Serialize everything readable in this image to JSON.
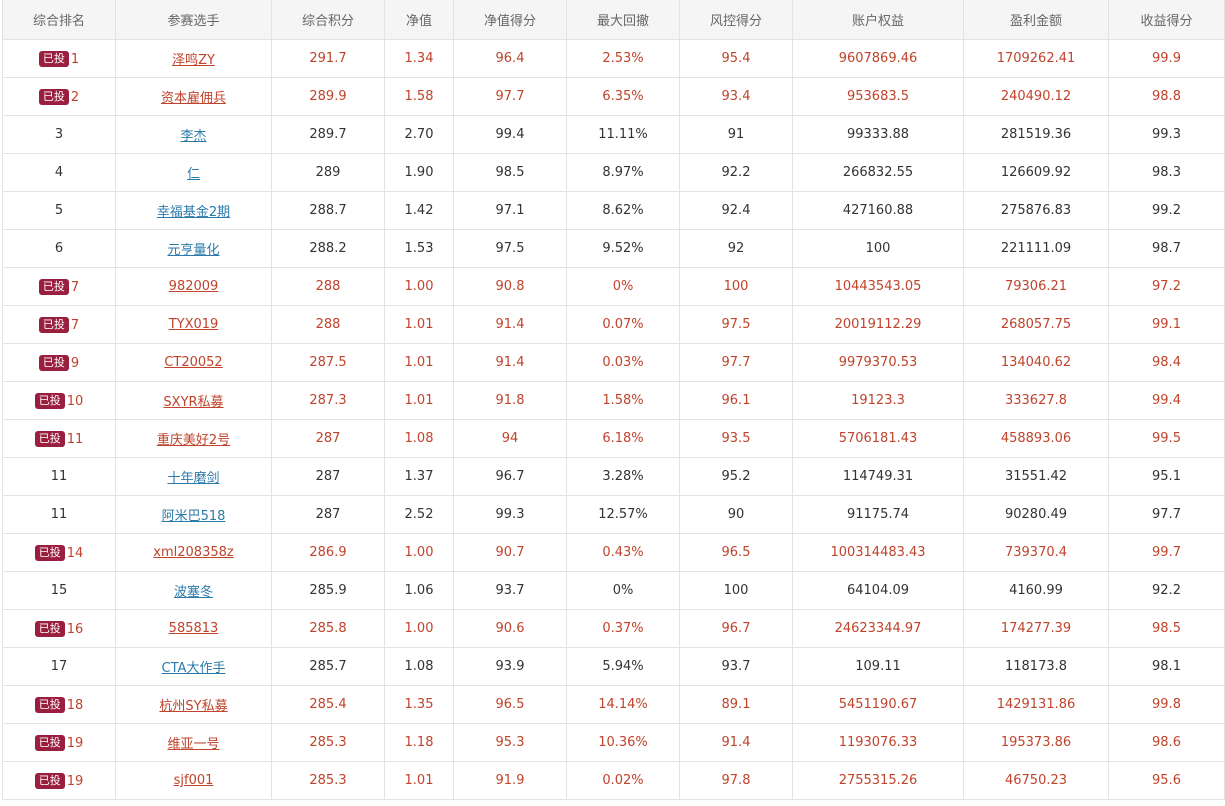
{
  "header": [
    "综合排名",
    "参赛选手",
    "综合积分",
    "净值",
    "净值得分",
    "最大回撤",
    "风控得分",
    "账户权益",
    "盈利金额",
    "收益得分"
  ],
  "badge_label": "已投",
  "colors": {
    "invested_text": "#c0432b",
    "normal_link": "#2b7aab",
    "badge_bg": "#9a1e3d"
  },
  "rows": [
    {
      "invested": true,
      "rank": "1",
      "name": "泽鸣ZY",
      "score": "291.7",
      "nav": "1.34",
      "nav_score": "96.4",
      "drawdown": "2.53%",
      "risk": "95.4",
      "equity": "9607869.46",
      "profit": "1709262.41",
      "return_score": "99.9"
    },
    {
      "invested": true,
      "rank": "2",
      "name": "资本雇佣兵",
      "score": "289.9",
      "nav": "1.58",
      "nav_score": "97.7",
      "drawdown": "6.35%",
      "risk": "93.4",
      "equity": "953683.5",
      "profit": "240490.12",
      "return_score": "98.8"
    },
    {
      "invested": false,
      "rank": "3",
      "name": "李杰",
      "score": "289.7",
      "nav": "2.70",
      "nav_score": "99.4",
      "drawdown": "11.11%",
      "risk": "91",
      "equity": "99333.88",
      "profit": "281519.36",
      "return_score": "99.3"
    },
    {
      "invested": false,
      "rank": "4",
      "name": "仁",
      "score": "289",
      "nav": "1.90",
      "nav_score": "98.5",
      "drawdown": "8.97%",
      "risk": "92.2",
      "equity": "266832.55",
      "profit": "126609.92",
      "return_score": "98.3"
    },
    {
      "invested": false,
      "rank": "5",
      "name": "幸福基金2期",
      "score": "288.7",
      "nav": "1.42",
      "nav_score": "97.1",
      "drawdown": "8.62%",
      "risk": "92.4",
      "equity": "427160.88",
      "profit": "275876.83",
      "return_score": "99.2"
    },
    {
      "invested": false,
      "rank": "6",
      "name": "元亨量化",
      "score": "288.2",
      "nav": "1.53",
      "nav_score": "97.5",
      "drawdown": "9.52%",
      "risk": "92",
      "equity": "100",
      "profit": "221111.09",
      "return_score": "98.7"
    },
    {
      "invested": true,
      "rank": "7",
      "name": "982009",
      "score": "288",
      "nav": "1.00",
      "nav_score": "90.8",
      "drawdown": "0%",
      "risk": "100",
      "equity": "10443543.05",
      "profit": "79306.21",
      "return_score": "97.2"
    },
    {
      "invested": true,
      "rank": "7",
      "name": "TYX019",
      "score": "288",
      "nav": "1.01",
      "nav_score": "91.4",
      "drawdown": "0.07%",
      "risk": "97.5",
      "equity": "20019112.29",
      "profit": "268057.75",
      "return_score": "99.1"
    },
    {
      "invested": true,
      "rank": "9",
      "name": "CT20052",
      "score": "287.5",
      "nav": "1.01",
      "nav_score": "91.4",
      "drawdown": "0.03%",
      "risk": "97.7",
      "equity": "9979370.53",
      "profit": "134040.62",
      "return_score": "98.4"
    },
    {
      "invested": true,
      "rank": "10",
      "name": "SXYR私募",
      "score": "287.3",
      "nav": "1.01",
      "nav_score": "91.8",
      "drawdown": "1.58%",
      "risk": "96.1",
      "equity": "19123.3",
      "profit": "333627.8",
      "return_score": "99.4"
    },
    {
      "invested": true,
      "rank": "11",
      "name": "重庆美好2号",
      "score": "287",
      "nav": "1.08",
      "nav_score": "94",
      "drawdown": "6.18%",
      "risk": "93.5",
      "equity": "5706181.43",
      "profit": "458893.06",
      "return_score": "99.5"
    },
    {
      "invested": false,
      "rank": "11",
      "name": "十年磨剑",
      "score": "287",
      "nav": "1.37",
      "nav_score": "96.7",
      "drawdown": "3.28%",
      "risk": "95.2",
      "equity": "114749.31",
      "profit": "31551.42",
      "return_score": "95.1"
    },
    {
      "invested": false,
      "rank": "11",
      "name": "阿米巴518",
      "score": "287",
      "nav": "2.52",
      "nav_score": "99.3",
      "drawdown": "12.57%",
      "risk": "90",
      "equity": "91175.74",
      "profit": "90280.49",
      "return_score": "97.7"
    },
    {
      "invested": true,
      "rank": "14",
      "name": "xml208358z",
      "score": "286.9",
      "nav": "1.00",
      "nav_score": "90.7",
      "drawdown": "0.43%",
      "risk": "96.5",
      "equity": "100314483.43",
      "profit": "739370.4",
      "return_score": "99.7"
    },
    {
      "invested": false,
      "rank": "15",
      "name": "波塞冬",
      "score": "285.9",
      "nav": "1.06",
      "nav_score": "93.7",
      "drawdown": "0%",
      "risk": "100",
      "equity": "64104.09",
      "profit": "4160.99",
      "return_score": "92.2"
    },
    {
      "invested": true,
      "rank": "16",
      "name": "585813",
      "score": "285.8",
      "nav": "1.00",
      "nav_score": "90.6",
      "drawdown": "0.37%",
      "risk": "96.7",
      "equity": "24623344.97",
      "profit": "174277.39",
      "return_score": "98.5"
    },
    {
      "invested": false,
      "rank": "17",
      "name": "CTA大作手",
      "score": "285.7",
      "nav": "1.08",
      "nav_score": "93.9",
      "drawdown": "5.94%",
      "risk": "93.7",
      "equity": "109.11",
      "profit": "118173.8",
      "return_score": "98.1"
    },
    {
      "invested": true,
      "rank": "18",
      "name": "杭州SY私募",
      "score": "285.4",
      "nav": "1.35",
      "nav_score": "96.5",
      "drawdown": "14.14%",
      "risk": "89.1",
      "equity": "5451190.67",
      "profit": "1429131.86",
      "return_score": "99.8"
    },
    {
      "invested": true,
      "rank": "19",
      "name": "维亚一号",
      "score": "285.3",
      "nav": "1.18",
      "nav_score": "95.3",
      "drawdown": "10.36%",
      "risk": "91.4",
      "equity": "1193076.33",
      "profit": "195373.86",
      "return_score": "98.6"
    },
    {
      "invested": true,
      "rank": "19",
      "name": "sjf001",
      "score": "285.3",
      "nav": "1.01",
      "nav_score": "91.9",
      "drawdown": "0.02%",
      "risk": "97.8",
      "equity": "2755315.26",
      "profit": "46750.23",
      "return_score": "95.6"
    }
  ]
}
